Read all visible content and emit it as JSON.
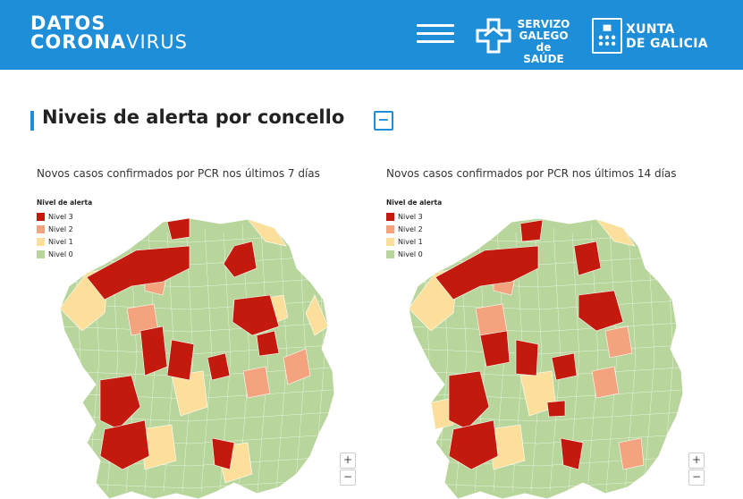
{
  "header": {
    "logo_line1": "DATOS",
    "logo_line2_bold": "CORONA",
    "logo_line2_light": "VIRUS",
    "menu_icon": "hamburger-icon",
    "sergas": [
      "SERVIZO",
      "GALEGO",
      "de SAÚDE"
    ],
    "xunta": [
      "XUNTA",
      "DE GALICIA"
    ]
  },
  "section": {
    "title": "Niveis de alerta por concello",
    "collapse_symbol": "−"
  },
  "maps": [
    {
      "title": "Novos casos confirmados por PCR nos últimos 7 días",
      "legend_title": "Nivel de alerta",
      "legend": [
        "Nivel 3",
        "Nivel 2",
        "Nivel 1",
        "Nivel 0"
      ]
    },
    {
      "title": "Novos casos confirmados por PCR nos últimos 14 días",
      "legend_title": "Nivel de alerta",
      "legend": [
        "Nivel 3",
        "Nivel 2",
        "Nivel 1",
        "Nivel 0"
      ]
    }
  ],
  "zoom": {
    "in": "+",
    "out": "−"
  },
  "colors": {
    "brand": "#1e8ed8",
    "nivel3": "#c41a0e",
    "nivel2": "#f3a47f",
    "nivel1": "#fbdf9a",
    "nivel0": "#b8d59b"
  }
}
